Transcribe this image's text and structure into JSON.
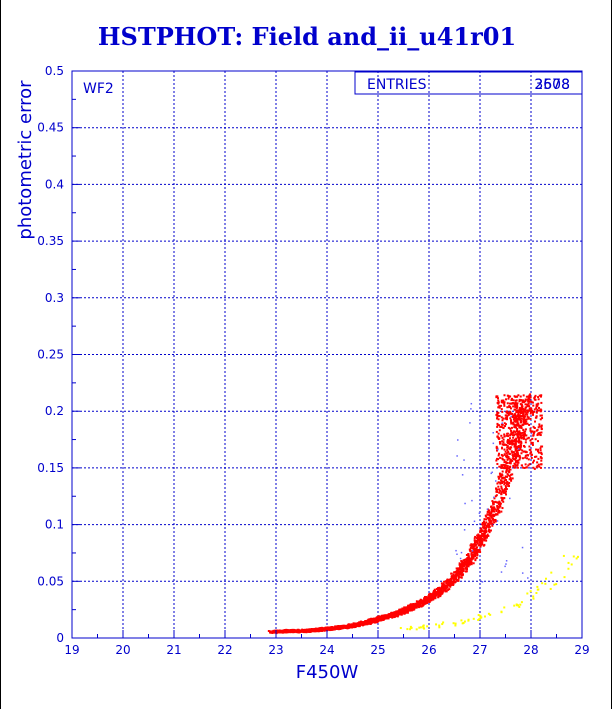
{
  "chart_data": {
    "type": "scatter",
    "title": "HSTPHOT: Field and_ii_u41r01",
    "xlabel": "F450W",
    "ylabel": "photometric error",
    "xlim": [
      19,
      29
    ],
    "ylim": [
      0,
      0.5
    ],
    "x_ticks": [
      "19",
      "20",
      "21",
      "22",
      "23",
      "24",
      "25",
      "26",
      "27",
      "28",
      "29"
    ],
    "y_ticks": [
      "0",
      "0.05",
      "0.1",
      "0.15",
      "0.2",
      "0.25",
      "0.3",
      "0.35",
      "0.4",
      "0.45",
      "0.5"
    ],
    "grid": true,
    "panel_label": "WF2",
    "stats_box": {
      "label": "ENTRIES",
      "values": [
        "2608",
        "3578"
      ]
    },
    "colors": {
      "axes": "#0000cc",
      "main_series": "#ff0000",
      "secondary_series": "#ffff00",
      "faint_points": "#6666ff"
    },
    "series": [
      {
        "color": "#ff0000",
        "description_of_shape": "dense curved locus",
        "points": [
          [
            22.9,
            0.006
          ],
          [
            23.2,
            0.007
          ],
          [
            23.5,
            0.007
          ],
          [
            23.8,
            0.008
          ],
          [
            24.0,
            0.009
          ],
          [
            24.2,
            0.01
          ],
          [
            24.4,
            0.011
          ],
          [
            24.6,
            0.013
          ],
          [
            24.8,
            0.015
          ],
          [
            25.0,
            0.018
          ],
          [
            25.2,
            0.02
          ],
          [
            25.4,
            0.023
          ],
          [
            25.6,
            0.027
          ],
          [
            25.8,
            0.031
          ],
          [
            26.0,
            0.036
          ],
          [
            26.2,
            0.042
          ],
          [
            26.4,
            0.05
          ],
          [
            26.6,
            0.06
          ],
          [
            26.8,
            0.072
          ],
          [
            27.0,
            0.088
          ],
          [
            27.2,
            0.106
          ],
          [
            27.4,
            0.13
          ],
          [
            27.6,
            0.16
          ],
          [
            27.75,
            0.19
          ],
          [
            27.85,
            0.21
          ]
        ]
      },
      {
        "color": "#ffff00",
        "description_of_shape": "sparse lower sequence",
        "points": [
          [
            25.3,
            0.008
          ],
          [
            25.8,
            0.01
          ],
          [
            26.2,
            0.012
          ],
          [
            26.6,
            0.015
          ],
          [
            27.0,
            0.019
          ],
          [
            27.4,
            0.025
          ],
          [
            27.8,
            0.033
          ],
          [
            28.2,
            0.045
          ],
          [
            28.5,
            0.058
          ],
          [
            28.9,
            0.075
          ]
        ]
      }
    ]
  }
}
